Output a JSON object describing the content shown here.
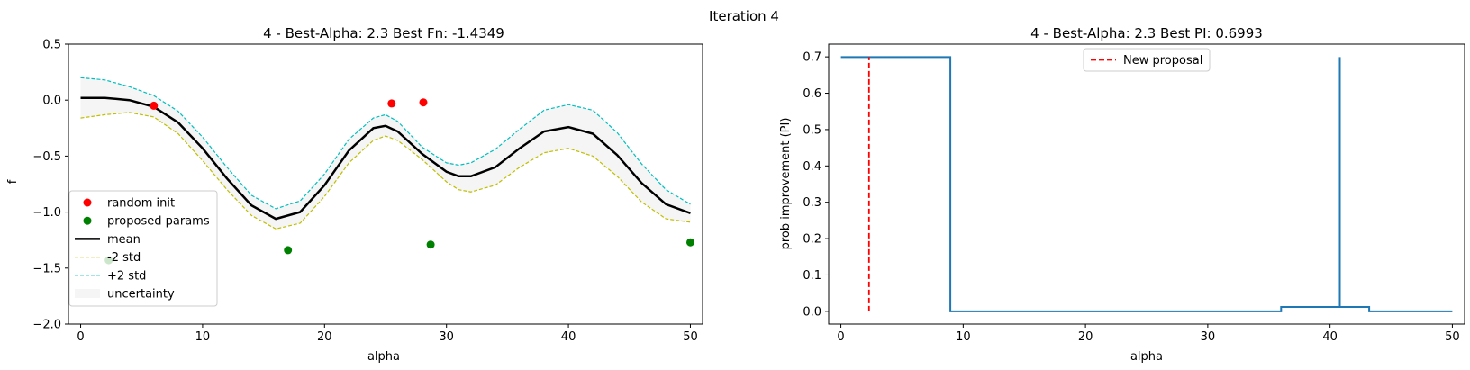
{
  "figure": {
    "suptitle": "Iteration 4"
  },
  "chart_data": [
    {
      "type": "line",
      "title": "4 - Best-Alpha: 2.3 Best Fn: -1.4349",
      "xlabel": "alpha",
      "ylabel": "f",
      "xlim": [
        -1,
        51
      ],
      "ylim": [
        -2.0,
        0.5
      ],
      "xticks": [
        "0",
        "10",
        "20",
        "30",
        "40",
        "50"
      ],
      "yticks": [
        "0.5",
        "0.0",
        "−0.5",
        "−1.0",
        "−1.5",
        "−2.0"
      ],
      "grid": false,
      "legend_position": "lower-left",
      "colors": {
        "mean": "#000000",
        "minus2": "#bfbf00",
        "plus2": "#00bfbf",
        "uncertainty": "#f5f5f5",
        "random_init": "#ff0000",
        "proposed": "#008000"
      },
      "x": [
        0,
        2,
        4,
        6,
        8,
        10,
        12,
        14,
        16,
        18,
        20,
        22,
        24,
        25,
        26,
        28,
        30,
        31,
        32,
        34,
        36,
        38,
        40,
        42,
        44,
        46,
        48,
        50
      ],
      "series": [
        {
          "name": "mean",
          "style": "solid",
          "values": [
            0.02,
            0.02,
            0.0,
            -0.06,
            -0.2,
            -0.43,
            -0.7,
            -0.94,
            -1.06,
            -1.0,
            -0.76,
            -0.45,
            -0.25,
            -0.23,
            -0.28,
            -0.48,
            -0.64,
            -0.68,
            -0.68,
            -0.6,
            -0.43,
            -0.28,
            -0.24,
            -0.3,
            -0.49,
            -0.74,
            -0.93,
            -1.01
          ]
        },
        {
          "name": "-2 std",
          "style": "dashed",
          "values": [
            -0.16,
            -0.13,
            -0.11,
            -0.15,
            -0.3,
            -0.54,
            -0.8,
            -1.03,
            -1.15,
            -1.1,
            -0.86,
            -0.56,
            -0.36,
            -0.32,
            -0.36,
            -0.53,
            -0.73,
            -0.8,
            -0.82,
            -0.76,
            -0.6,
            -0.47,
            -0.43,
            -0.5,
            -0.68,
            -0.91,
            -1.06,
            -1.09
          ]
        },
        {
          "name": "+2 std",
          "style": "dashed",
          "values": [
            0.2,
            0.18,
            0.12,
            0.04,
            -0.1,
            -0.33,
            -0.6,
            -0.85,
            -0.97,
            -0.9,
            -0.66,
            -0.35,
            -0.16,
            -0.13,
            -0.19,
            -0.42,
            -0.56,
            -0.58,
            -0.56,
            -0.44,
            -0.26,
            -0.09,
            -0.04,
            -0.09,
            -0.29,
            -0.57,
            -0.8,
            -0.93
          ]
        }
      ],
      "scatter": [
        {
          "name": "random init",
          "points": [
            [
              6,
              -0.05
            ],
            [
              25.5,
              -0.03
            ],
            [
              28.1,
              -0.02
            ]
          ]
        },
        {
          "name": "proposed params",
          "points": [
            [
              2.3,
              -1.43
            ],
            [
              17,
              -1.34
            ],
            [
              28.7,
              -1.29
            ],
            [
              50,
              -1.27
            ]
          ]
        }
      ],
      "legend": [
        "random init",
        "proposed params",
        "mean",
        "-2 std",
        "+2 std",
        "uncertainty"
      ]
    },
    {
      "type": "line",
      "title": "4 - Best-Alpha: 2.3 Best PI: 0.6993",
      "xlabel": "alpha",
      "ylabel": "prob improvement (PI)",
      "xlim": [
        -1,
        51
      ],
      "ylim": [
        -0.035,
        0.735
      ],
      "xticks": [
        "0",
        "10",
        "20",
        "30",
        "40",
        "50"
      ],
      "yticks": [
        "0.7",
        "0.6",
        "0.5",
        "0.4",
        "0.3",
        "0.2",
        "0.1",
        "0.0"
      ],
      "grid": false,
      "legend_position": "top-center",
      "colors": {
        "pi": "#1f77b4",
        "proposal": "#ff0000"
      },
      "series": [
        {
          "name": "PI",
          "points": [
            [
              0,
              0.6993
            ],
            [
              8.95,
              0.6993
            ],
            [
              8.95,
              0.0
            ],
            [
              36,
              0.0
            ],
            [
              36,
              0.012
            ],
            [
              40.8,
              0.012
            ],
            [
              40.8,
              0.6993
            ],
            [
              40.8,
              0.012
            ],
            [
              43.2,
              0.012
            ],
            [
              43.2,
              0.0
            ],
            [
              50,
              0.0
            ]
          ]
        }
      ],
      "vline": {
        "name": "New proposal",
        "x": 2.3,
        "ymin": 0.0,
        "ymax": 0.6993
      },
      "legend": [
        "New proposal"
      ]
    }
  ]
}
